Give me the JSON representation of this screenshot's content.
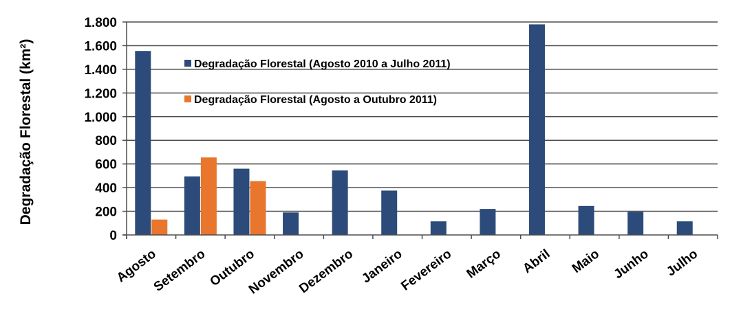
{
  "chart_data": {
    "type": "bar",
    "ylabel": "Degradação Florestal (km²)",
    "ylim": [
      0,
      1800
    ],
    "yticks": [
      0,
      200,
      400,
      600,
      800,
      1000,
      1200,
      1400,
      1600,
      1800
    ],
    "ytick_labels": [
      "0",
      "200",
      "400",
      "600",
      "800",
      "1.000",
      "1.200",
      "1.400",
      "1.600",
      "1.800"
    ],
    "grid": "horizontal",
    "legend_position": "top-left",
    "categories": [
      "Agosto",
      "Setembro",
      "Outubro",
      "Novembro",
      "Dezembro",
      "Janeiro",
      "Fevereiro",
      "Março",
      "Abril",
      "Maio",
      "Junho",
      "Julho"
    ],
    "series": [
      {
        "name": "Degradação Florestal (Agosto 2010 a Julho 2011)",
        "color": "#2c4b7a",
        "values": [
          1555,
          495,
          560,
          190,
          545,
          375,
          115,
          220,
          1780,
          245,
          195,
          115
        ]
      },
      {
        "name": "Degradação Florestal (Agosto a Outubro 2011)",
        "color": "#e8762d",
        "values": [
          130,
          655,
          455,
          null,
          null,
          null,
          null,
          null,
          null,
          null,
          null,
          null
        ]
      }
    ]
  }
}
